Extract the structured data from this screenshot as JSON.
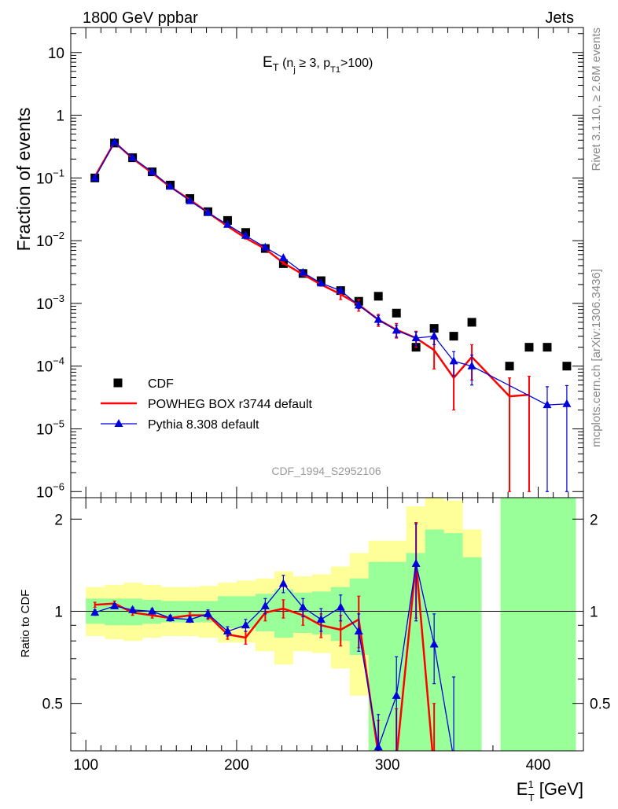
{
  "header": {
    "left": "1800 GeV ppbar",
    "right": "Jets"
  },
  "side": {
    "right_top": "Rivet 3.1.10, ≥ 2.6M events",
    "right_bottom": "mcplots.cern.ch [arXiv:1306.3436]"
  },
  "plot_title": {
    "main": "E",
    "main_sub": "T",
    "paren_open": " (n",
    "nj_sub": "j",
    "ge3": " ≥ 3, p",
    "pt_sub": "T1",
    "cut": ">100)"
  },
  "watermark": "CDF_1994_S2952106",
  "axes": {
    "upper_ylabel": "Fraction of events",
    "lower_ylabel": "Ratio to CDF",
    "xlabel_main": "E",
    "xlabel_sup": "1",
    "xlabel_sub": "T",
    "xlabel_unit": " [GeV]"
  },
  "colors": {
    "cdf": "#000000",
    "powheg": "#ff0000",
    "pythia": "#0000dd",
    "band_inner": "#99ff99",
    "band_outer": "#ffff99"
  },
  "chart_data": {
    "type": "scatter",
    "xlim": [
      90,
      430
    ],
    "x_ticks": [
      100,
      200,
      300,
      400
    ],
    "upper": {
      "yscale": "log",
      "ylim": [
        8e-07,
        25
      ],
      "y_tick_labels": [
        {
          "v": 10,
          "base": "10",
          "exp": ""
        },
        {
          "v": 1,
          "base": "1",
          "exp": ""
        },
        {
          "v": 0.1,
          "base": "10",
          "exp": "−1"
        },
        {
          "v": 0.01,
          "base": "10",
          "exp": "−2"
        },
        {
          "v": 0.001,
          "base": "10",
          "exp": "−3"
        },
        {
          "v": 0.0001,
          "base": "10",
          "exp": "−4"
        },
        {
          "v": 1e-05,
          "base": "10",
          "exp": "−5"
        },
        {
          "v": 1e-06,
          "base": "10",
          "exp": "−6"
        }
      ]
    },
    "lower": {
      "yscale": "log",
      "ylim": [
        0.35,
        2.35
      ],
      "y_ticks": [
        {
          "v": 0.5,
          "label": "0.5"
        },
        {
          "v": 1,
          "label": "1"
        },
        {
          "v": 2,
          "label": "2"
        }
      ],
      "reference_line": 1
    },
    "legend": {
      "placement": "bottom-left",
      "entries": [
        {
          "key": "cdf",
          "label": "CDF"
        },
        {
          "key": "powheg",
          "label": "POWHEG BOX r3744 default"
        },
        {
          "key": "pythia",
          "label": "Pythia 8.308 default"
        }
      ]
    },
    "series": [
      {
        "name": "CDF",
        "key": "cdf",
        "x": [
          106,
          119,
          131,
          144,
          156,
          169,
          181,
          194,
          206,
          219,
          231,
          244,
          256,
          269,
          281,
          294,
          306,
          319,
          331,
          344,
          356,
          381,
          394,
          406,
          419
        ],
        "y": [
          0.1,
          0.36,
          0.21,
          0.125,
          0.077,
          0.047,
          0.029,
          0.021,
          0.0135,
          0.0075,
          0.0043,
          0.003,
          0.0023,
          0.0016,
          0.00108,
          0.0013,
          0.0007,
          0.0002,
          0.0004,
          0.0003,
          0.0005,
          0.0001,
          0.0002,
          0.0002,
          0.0001
        ]
      },
      {
        "name": "POWHEG BOX r3744 default",
        "key": "powheg",
        "x": [
          106,
          119,
          131,
          144,
          156,
          169,
          181,
          194,
          206,
          219,
          231,
          244,
          256,
          269,
          281,
          294,
          306,
          319,
          331,
          344,
          356,
          381,
          394
        ],
        "y": [
          0.105,
          0.37,
          0.205,
          0.12,
          0.072,
          0.045,
          0.028,
          0.017,
          0.011,
          0.0074,
          0.0044,
          0.0029,
          0.002,
          0.0014,
          0.00095,
          0.00055,
          0.00038,
          0.00028,
          0.00018,
          6.5e-05,
          0.00014,
          3.3e-05,
          3.5e-05
        ],
        "err": [
          0.004,
          0.01,
          0.006,
          0.004,
          0.002,
          0.0015,
          0.001,
          0.0006,
          0.0004,
          0.0003,
          0.0002,
          0.00015,
          0.00012,
          0.00025,
          0.0002,
          0.00012,
          0.0001,
          8e-05,
          9e-05,
          4.5e-05,
          8e-05,
          3.2e-05,
          3.4e-05
        ]
      },
      {
        "name": "Pythia 8.308 default",
        "key": "pythia",
        "x": [
          106,
          119,
          131,
          144,
          156,
          169,
          181,
          194,
          206,
          219,
          231,
          244,
          256,
          269,
          281,
          294,
          306,
          319,
          331,
          344,
          356,
          406,
          419
        ],
        "y": [
          0.1,
          0.37,
          0.21,
          0.125,
          0.073,
          0.043,
          0.028,
          0.018,
          0.012,
          0.0078,
          0.0053,
          0.0031,
          0.0021,
          0.0016,
          0.00093,
          0.00055,
          0.00037,
          0.00028,
          0.0003,
          0.00012,
          0.0001,
          2.4e-05,
          2.5e-05
        ],
        "err": [
          0.003,
          0.008,
          0.005,
          0.003,
          0.002,
          0.0012,
          0.0008,
          0.0006,
          0.0004,
          0.0003,
          0.0003,
          0.0002,
          0.00015,
          0.00012,
          0.0001,
          9e-05,
          8e-05,
          7e-05,
          8e-05,
          5e-05,
          5e-05,
          2.3e-05,
          2.4e-05
        ]
      }
    ],
    "ratio_series": [
      {
        "key": "powheg",
        "x": [
          106,
          119,
          131,
          144,
          156,
          169,
          181,
          194,
          206,
          219,
          231,
          244,
          256,
          269,
          281,
          294,
          306,
          319,
          331
        ],
        "y": [
          1.05,
          1.06,
          0.99,
          0.97,
          0.95,
          0.97,
          0.97,
          0.84,
          0.82,
          0.99,
          1.02,
          0.97,
          0.9,
          0.87,
          0.94,
          0.34,
          0.33,
          1.45,
          0.3
        ],
        "err": [
          0.02,
          0.02,
          0.02,
          0.02,
          0.02,
          0.02,
          0.03,
          0.03,
          0.04,
          0.06,
          0.07,
          0.07,
          0.08,
          0.1,
          0.18,
          0.1,
          0.15,
          0.5,
          0.2
        ]
      },
      {
        "key": "pythia",
        "x": [
          106,
          119,
          131,
          144,
          156,
          169,
          181,
          194,
          206,
          219,
          231,
          244,
          256,
          269,
          281,
          294,
          306,
          319,
          331,
          344
        ],
        "y": [
          0.99,
          1.04,
          1.01,
          1.0,
          0.95,
          0.94,
          0.98,
          0.86,
          0.9,
          1.04,
          1.23,
          1.03,
          0.94,
          1.03,
          0.86,
          0.36,
          0.53,
          1.43,
          0.78,
          0.33
        ],
        "err": [
          0.02,
          0.02,
          0.02,
          0.02,
          0.02,
          0.02,
          0.03,
          0.03,
          0.04,
          0.06,
          0.08,
          0.07,
          0.08,
          0.1,
          0.12,
          0.1,
          0.18,
          0.5,
          0.2,
          0.28
        ]
      }
    ],
    "bands": {
      "edges": [
        100,
        112.5,
        125,
        137.5,
        150,
        162.5,
        175,
        187.5,
        200,
        212.5,
        225,
        237.5,
        250,
        262.5,
        275,
        287.5,
        300,
        312.5,
        325,
        337.5,
        350,
        362.5,
        375,
        387.5,
        400,
        412.5,
        425
      ],
      "inner": [
        [
          0.91,
          1.1
        ],
        [
          0.9,
          1.1
        ],
        [
          0.9,
          1.1
        ],
        [
          0.91,
          1.09
        ],
        [
          0.92,
          1.08
        ],
        [
          0.92,
          1.08
        ],
        [
          0.92,
          1.08
        ],
        [
          0.88,
          1.12
        ],
        [
          0.88,
          1.12
        ],
        [
          0.86,
          1.14
        ],
        [
          0.82,
          1.18
        ],
        [
          0.85,
          1.15
        ],
        [
          0.84,
          1.16
        ],
        [
          0.8,
          1.2
        ],
        [
          0.72,
          1.28
        ],
        [
          0.35,
          1.45
        ],
        [
          0.35,
          1.45
        ],
        [
          0.35,
          1.55
        ],
        [
          0.35,
          1.85
        ],
        [
          0.35,
          1.8
        ],
        [
          0.35,
          1.5
        ],
        null,
        [
          0.35,
          2.35
        ],
        [
          0.35,
          2.35
        ],
        [
          0.35,
          2.35
        ],
        [
          0.35,
          2.35
        ]
      ],
      "outer": [
        [
          0.83,
          1.2
        ],
        [
          0.81,
          1.22
        ],
        [
          0.8,
          1.24
        ],
        [
          0.82,
          1.22
        ],
        [
          0.83,
          1.2
        ],
        [
          0.83,
          1.2
        ],
        [
          0.82,
          1.21
        ],
        [
          0.79,
          1.24
        ],
        [
          0.79,
          1.26
        ],
        [
          0.74,
          1.28
        ],
        [
          0.67,
          1.35
        ],
        [
          0.74,
          1.3
        ],
        [
          0.73,
          1.32
        ],
        [
          0.65,
          1.4
        ],
        [
          0.53,
          1.55
        ],
        [
          0.35,
          1.7
        ],
        [
          0.35,
          1.7
        ],
        [
          0.35,
          2.2
        ],
        [
          0.35,
          2.35
        ],
        [
          0.35,
          2.3
        ],
        [
          0.35,
          1.85
        ],
        null,
        [
          0.35,
          2.35
        ],
        [
          0.35,
          2.35
        ],
        [
          0.35,
          2.35
        ],
        [
          0.35,
          2.35
        ]
      ]
    }
  }
}
